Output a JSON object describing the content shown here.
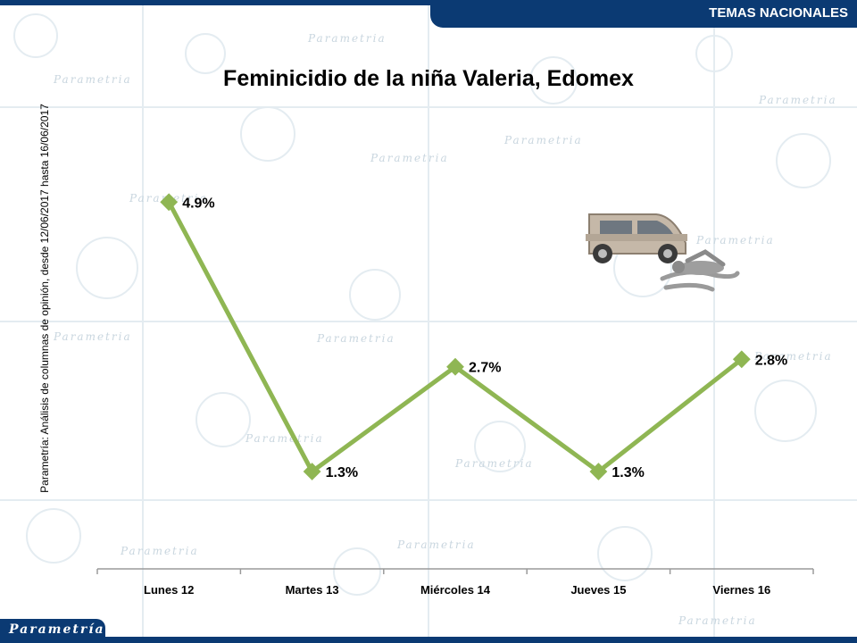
{
  "header": {
    "section": "TEMAS NACIONALES"
  },
  "footer": {
    "logo": "Parametría"
  },
  "source_note": "Parametría: Análisis de columnas de opinión, desde 12/06/2017 hasta 16/06/2017",
  "watermark_text": "Parametria",
  "icons": {
    "illustration": "van-and-victim-icon"
  },
  "colors": {
    "brand": "#0b3a73",
    "series": "#8fb653",
    "axis": "#9a9a9a"
  },
  "chart_data": {
    "type": "line",
    "title": "Feminicidio de la niña Valeria, Edomex",
    "xlabel": "",
    "ylabel": "",
    "categories": [
      "Lunes 12",
      "Martes 13",
      "Miércoles 14",
      "Jueves 15",
      "Viernes 16"
    ],
    "series": [
      {
        "values": [
          4.9,
          1.3,
          2.7,
          1.3,
          2.8
        ],
        "labels": [
          "4.9%",
          "1.3%",
          "2.7%",
          "1.3%",
          "2.8%"
        ]
      }
    ],
    "ylim": [
      0,
      5.5
    ],
    "grid": false,
    "legend": "none"
  }
}
